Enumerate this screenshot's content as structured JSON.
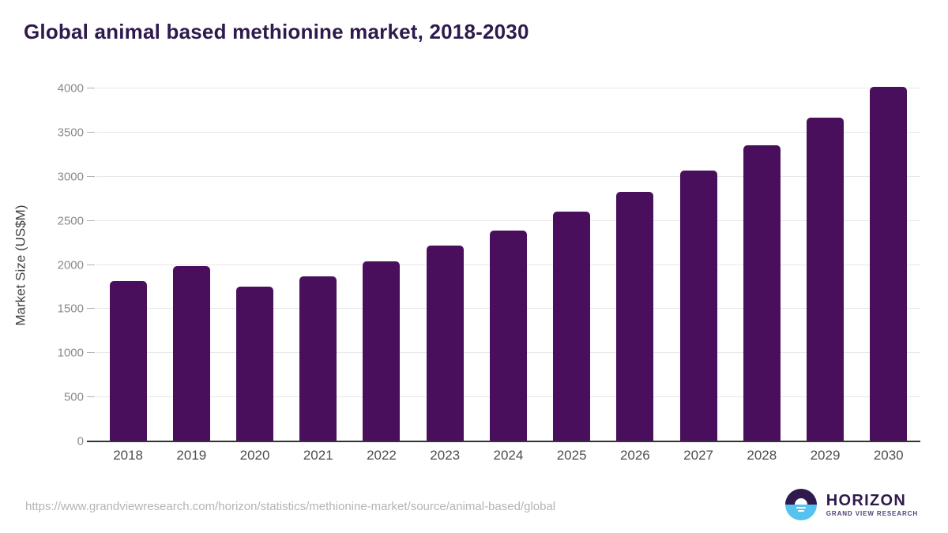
{
  "title": "Global animal based methionine market, 2018-2030",
  "footer": {
    "source_url": "https://www.grandviewresearch.com/horizon/statistics/methionine-market/source/animal-based/global",
    "logo": {
      "wordmark": "HORIZON",
      "subtitle": "GRAND VIEW RESEARCH"
    }
  },
  "colors": {
    "bar": "#4a0f5c",
    "chart_title": "#2e1a4d",
    "gridline": "#e7e7e7",
    "tick": "#b0b0b0",
    "baseline": "#333333",
    "y_tick_label": "#8a8a8a",
    "x_tick_label": "#4d4d4d",
    "axis_title": "#3f3f3f",
    "source_url": "#b4b4b4",
    "logo_purple": "#2e1a4d",
    "logo_blue": "#56c3ee",
    "background": "#ffffff"
  },
  "chart_data": {
    "type": "bar",
    "title": "Global animal based methionine market, 2018-2030",
    "categories": [
      "2018",
      "2019",
      "2020",
      "2021",
      "2022",
      "2023",
      "2024",
      "2025",
      "2026",
      "2027",
      "2028",
      "2029",
      "2030"
    ],
    "values": [
      1820,
      1990,
      1750,
      1870,
      2040,
      2220,
      2390,
      2600,
      2825,
      3070,
      3355,
      3665,
      4015
    ],
    "xlabel": "",
    "ylabel": "Market Size (US$M)",
    "ylim": [
      0,
      4000
    ],
    "ytick_interval": 500,
    "yticks": [
      0,
      500,
      1000,
      1500,
      2000,
      2500,
      3000,
      3500,
      4000
    ],
    "grid": true,
    "legend": false,
    "bar_color": "#4a0f5c"
  }
}
